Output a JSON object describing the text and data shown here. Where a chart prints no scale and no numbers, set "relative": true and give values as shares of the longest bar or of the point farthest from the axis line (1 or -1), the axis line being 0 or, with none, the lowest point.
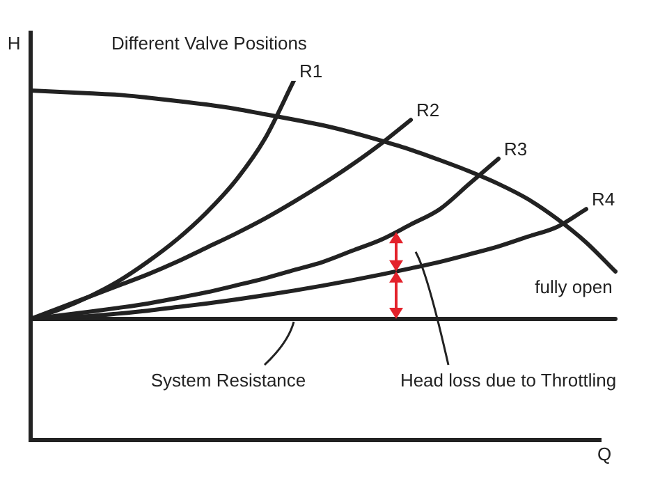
{
  "chart_data": {
    "type": "line",
    "title": "Different Valve Positions",
    "xlabel": "Q",
    "ylabel": "H",
    "relative": true,
    "legend": false,
    "grid": false,
    "marker": "none",
    "line_style": "solid",
    "categories": [
      null,
      null,
      null,
      null,
      null,
      null,
      null,
      null,
      null,
      null,
      null,
      null,
      null,
      null,
      null,
      null,
      null,
      null,
      null,
      null,
      null
    ],
    "series": [
      {
        "name": "R1",
        "color": "#222222",
        "values": [
          0.337,
          0.364,
          0.399,
          0.442,
          0.496,
          0.558,
          0.632,
          0.721,
          0.837,
          1,
          null,
          null,
          null,
          null,
          null,
          null,
          null,
          null,
          null,
          null,
          null
        ]
      },
      {
        "name": "R2",
        "color": "#222222",
        "values": [
          0.337,
          0.368,
          0.399,
          0.43,
          0.461,
          0.496,
          0.535,
          0.574,
          0.616,
          0.663,
          0.713,
          0.767,
          0.826,
          0.891,
          null,
          null,
          null,
          null,
          null,
          null,
          null
        ]
      },
      {
        "name": "R3",
        "color": "#222222",
        "values": [
          0.337,
          0.347,
          0.357,
          0.368,
          0.38,
          0.395,
          0.411,
          0.43,
          0.45,
          0.473,
          0.496,
          0.527,
          0.558,
          0.6,
          0.643,
          0.713,
          0.783,
          null,
          null,
          null,
          null
        ]
      },
      {
        "name": "R4",
        "color": "#222222",
        "values": [
          0.337,
          0.341,
          0.345,
          0.352,
          0.36,
          0.37,
          0.38,
          0.391,
          0.403,
          0.416,
          0.43,
          0.445,
          0.461,
          0.478,
          0.496,
          0.517,
          0.539,
          0.566,
          0.593,
          0.643,
          null
        ]
      },
      {
        "name": "fully open",
        "color": "#222222",
        "values": [
          0.973,
          0.969,
          0.965,
          0.961,
          0.953,
          0.944,
          0.934,
          0.922,
          0.907,
          0.892,
          0.876,
          0.856,
          0.833,
          0.808,
          0.779,
          0.748,
          0.713,
          0.671,
          0.616,
          0.55,
          0.469
        ]
      },
      {
        "color": "#222222",
        "values": [
          0.337,
          0.337,
          0.337,
          0.337,
          0.337,
          0.337,
          0.337,
          0.337,
          0.337,
          0.337,
          0.337,
          0.337,
          0.337,
          0.337,
          0.337,
          0.337,
          0.337,
          0.337,
          0.337,
          0.337,
          0.337
        ]
      }
    ],
    "annotations": [
      "System Resistance",
      "Head loss due to Throttling"
    ]
  }
}
